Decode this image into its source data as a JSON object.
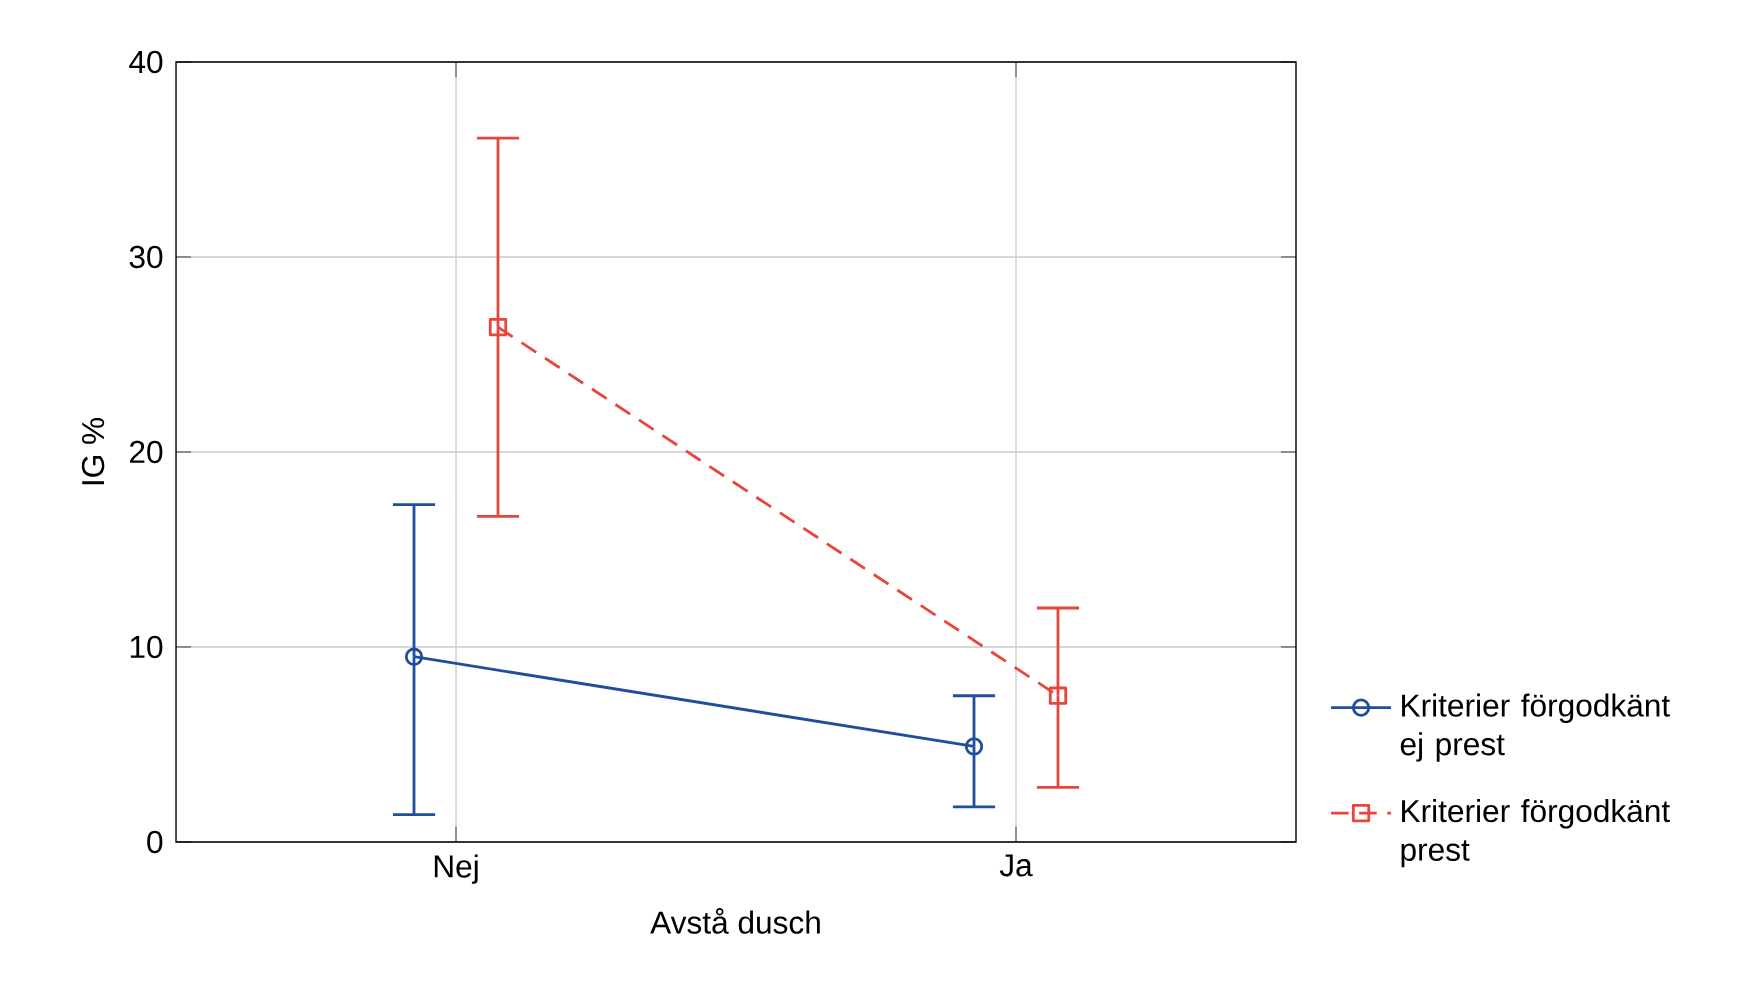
{
  "chart_data": {
    "type": "line",
    "xlabel": "Avstå dusch",
    "ylabel": "IG %",
    "categories": [
      "Nej",
      "Ja"
    ],
    "ylim": [
      0,
      40
    ],
    "yticks": [
      0,
      10,
      20,
      30,
      40
    ],
    "grid": true,
    "legend": "bottom right",
    "series": [
      {
        "name": "Kriterier förgodkänt ej prest",
        "color": "#1f4e9c",
        "values": [
          9.5,
          4.9
        ],
        "errors": [
          [
            1.4,
            17.3
          ],
          [
            1.8,
            7.5
          ]
        ],
        "marker": "circle",
        "line_style": "solid"
      },
      {
        "name": "Kriterier förgodkänt prest",
        "color": "#e8463a",
        "values": [
          26.4,
          7.5
        ],
        "errors": [
          [
            16.7,
            36.1
          ],
          [
            2.8,
            12.0
          ]
        ],
        "marker": "square",
        "line_style": "dashed"
      }
    ]
  }
}
